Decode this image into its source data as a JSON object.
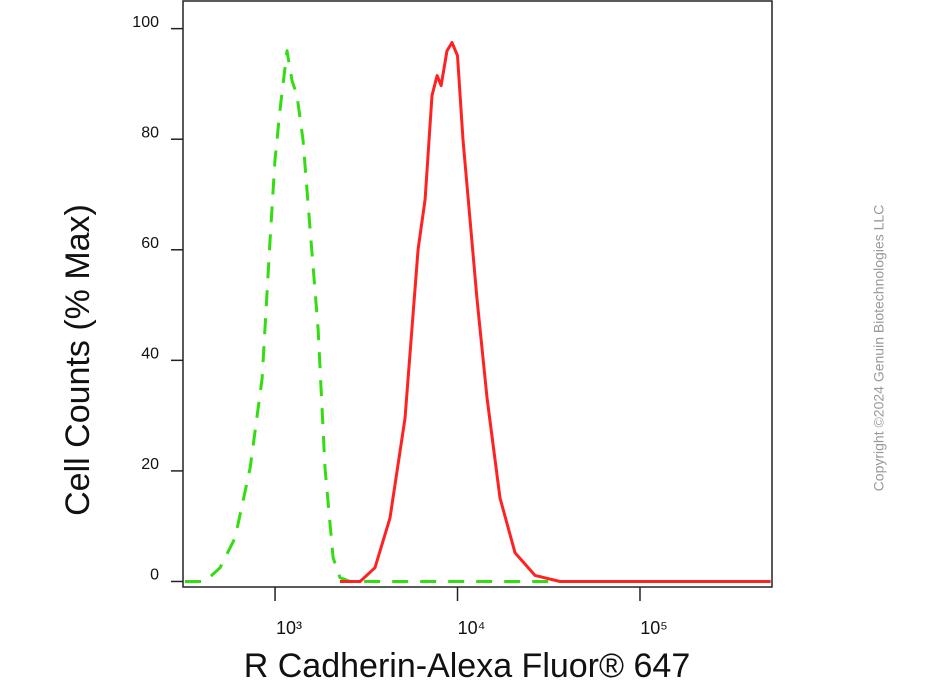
{
  "chart_data": {
    "type": "line",
    "xlabel": "R Cadherin-Alexa Fluor® 647",
    "ylabel": "Cell Counts (% Max)",
    "watermark": "Copyright ©2024 Genuin Biotechnologies LLC",
    "xscale": "log",
    "xlim": [
      313,
      529000
    ],
    "ylim": [
      -1,
      105
    ],
    "xticks": [
      {
        "value": 1000,
        "label": "10³"
      },
      {
        "value": 10000,
        "label": "10⁴"
      },
      {
        "value": 100000,
        "label": "10⁵"
      }
    ],
    "yticks": [
      0,
      20,
      40,
      60,
      80,
      100
    ],
    "series": [
      {
        "color": "#33dd11",
        "line_style": "dashed",
        "x": [
          321,
          413,
          500,
          604,
          730,
          849,
          939,
          1000,
          1064,
          1163,
          1239,
          1320,
          1423,
          1556,
          1721,
          1879,
          2080,
          2271,
          2576,
          520000
        ],
        "values": [
          0,
          0,
          2.5,
          7.9,
          20.5,
          36.7,
          61.9,
          76.3,
          85.3,
          96.0,
          90.6,
          87.9,
          79.9,
          63.7,
          45.7,
          20.5,
          4.3,
          0.7,
          0,
          0
        ]
      },
      {
        "color": "#ff2222",
        "line_style": "solid",
        "x": [
          2271,
          2924,
          3531,
          4266,
          5155,
          6079,
          6640,
          7247,
          7727,
          8128,
          8758,
          9333,
          10000,
          10720,
          11700,
          12790,
          14520,
          17100,
          20650,
          26600,
          36450,
          520000
        ],
        "values": [
          0,
          0,
          2.5,
          11.5,
          29.5,
          60.1,
          69.1,
          87.9,
          91.5,
          89.7,
          96.0,
          97.5,
          95.1,
          79.9,
          65.5,
          51.1,
          33.1,
          15.1,
          5.2,
          1.1,
          0,
          0
        ]
      }
    ]
  }
}
